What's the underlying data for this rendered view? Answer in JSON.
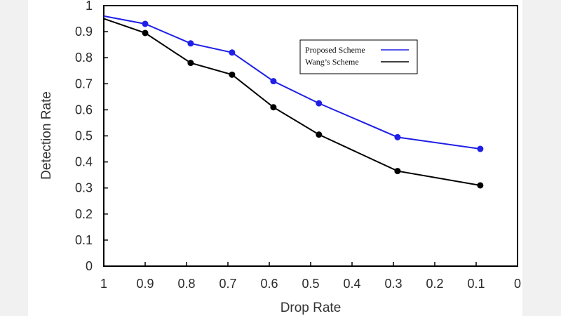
{
  "chart_data": {
    "type": "line",
    "xlabel": "Drop Rate",
    "ylabel": "Detection Rate",
    "xlim": [
      1,
      0
    ],
    "ylim": [
      0,
      1
    ],
    "x_ticks": [
      "1",
      "0.9",
      "0.8",
      "0.7",
      "0.6",
      "0.5",
      "0.4",
      "0.3",
      "0.2",
      "0.1",
      "0"
    ],
    "y_ticks": [
      "0",
      "0.1",
      "0.2",
      "0.3",
      "0.4",
      "0.5",
      "0.6",
      "0.7",
      "0.8",
      "0.9",
      "1"
    ],
    "grid": false,
    "legend_position": "top-right",
    "series": [
      {
        "name": "Proposed Scheme",
        "color": "#1f1fe6",
        "x": [
          1.0,
          0.9,
          0.79,
          0.69,
          0.59,
          0.48,
          0.29,
          0.09
        ],
        "y": [
          0.96,
          0.93,
          0.855,
          0.82,
          0.71,
          0.625,
          0.495,
          0.45
        ]
      },
      {
        "name": "Wang’s Scheme",
        "color": "#000000",
        "x": [
          1.0,
          0.9,
          0.79,
          0.69,
          0.59,
          0.48,
          0.29,
          0.09
        ],
        "y": [
          0.95,
          0.895,
          0.78,
          0.735,
          0.61,
          0.505,
          0.365,
          0.31
        ]
      }
    ]
  }
}
